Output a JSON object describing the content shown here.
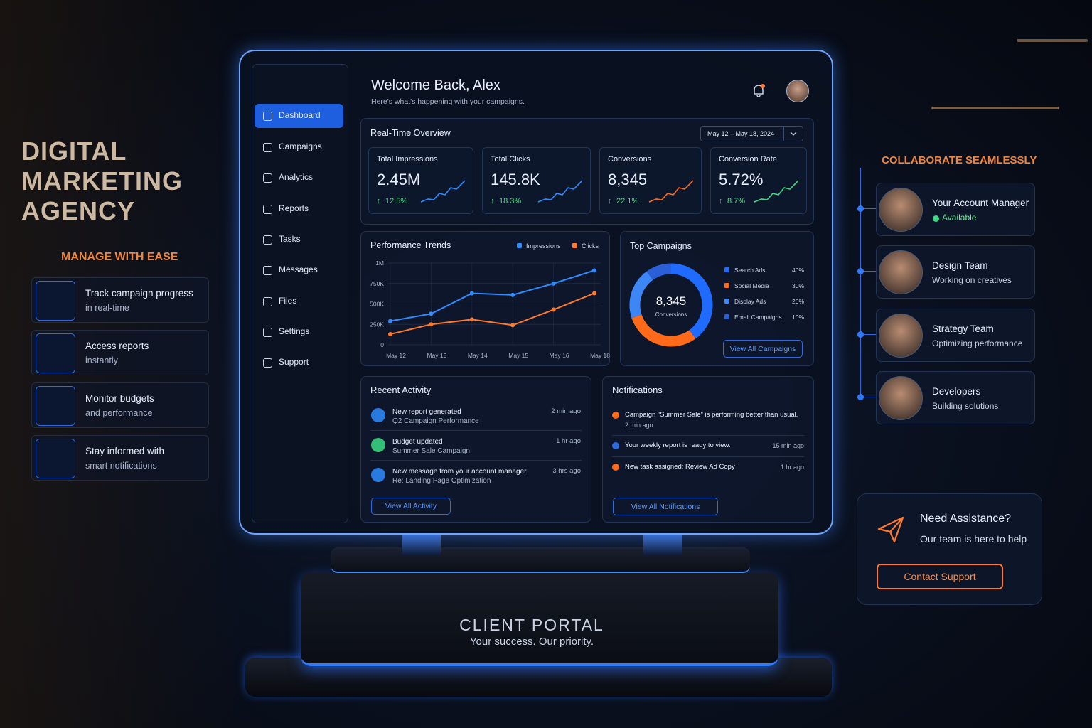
{
  "brand": {
    "lines": [
      "DIGITAL",
      "MARKETING",
      "AGENCY"
    ]
  },
  "left_panel": {
    "heading": "MANAGE WITH EASE",
    "features": [
      {
        "title": "Track campaign progress",
        "subtitle": "in real-time"
      },
      {
        "title": "Access reports",
        "subtitle": "instantly"
      },
      {
        "title": "Monitor budgets",
        "subtitle": "and performance"
      },
      {
        "title": "Stay informed with",
        "subtitle": "smart notifications"
      }
    ]
  },
  "sidebar": {
    "items": [
      "Dashboard",
      "Campaigns",
      "Analytics",
      "Reports",
      "Tasks",
      "Messages",
      "Files",
      "Settings",
      "Support"
    ]
  },
  "header": {
    "title": "Welcome Back, Alex",
    "subtitle": "Here's what's happening with your campaigns."
  },
  "overview": {
    "title": "Real-Time Overview",
    "date_range": "May 12 – May 18, 2024",
    "kpis": [
      {
        "label": "Total Impressions",
        "value": "2.45M",
        "change": "12.5%"
      },
      {
        "label": "Total Clicks",
        "value": "145.8K",
        "change": "18.3%"
      },
      {
        "label": "Conversions",
        "value": "8,345",
        "change": "22.1%"
      },
      {
        "label": "Conversion Rate",
        "value": "5.72%",
        "change": "8.7%"
      }
    ]
  },
  "chart_data": [
    {
      "type": "line",
      "title": "Performance Trends",
      "categories": [
        "May 12",
        "May 13",
        "May 14",
        "May 15",
        "May 16",
        "May 18"
      ],
      "series": [
        {
          "name": "Impressions",
          "color": "#2f8cff",
          "values": [
            290000,
            380000,
            630000,
            610000,
            750000,
            910000
          ]
        },
        {
          "name": "Clicks",
          "color": "#ff7a2a",
          "values": [
            130000,
            250000,
            310000,
            240000,
            430000,
            630000
          ]
        }
      ],
      "ylim": [
        0,
        1000000
      ],
      "yticks": [
        0,
        {
          "value": 250000,
          "label": "250K"
        },
        {
          "value": 500000,
          "label": "500K"
        },
        {
          "value": 750000,
          "label": "750K"
        },
        {
          "value": 1000000,
          "label": "1M"
        }
      ],
      "grid": true
    },
    {
      "type": "donut",
      "title": "Top Campaigns",
      "center_value": "8,345",
      "center_label": "Conversions",
      "categories": [
        "Search Ads",
        "Social Media",
        "Display Ads",
        "Email Campaigns"
      ],
      "values": [
        40,
        30,
        20,
        10
      ],
      "value_labels": [
        "40%",
        "30%",
        "20%",
        "10%"
      ],
      "colors": [
        "#1f6bff",
        "#ff6a1a",
        "#3d86f5",
        "#2a5fd8"
      ]
    }
  ],
  "top_campaigns": {
    "button": "View All Campaigns"
  },
  "recent_activity": {
    "title": "Recent Activity",
    "items": [
      {
        "title": "New report generated",
        "detail": "Q2 Campaign Performance",
        "time": "2 min ago"
      },
      {
        "title": "Budget updated",
        "detail": "Summer Sale Campaign",
        "time": "1 hr ago"
      },
      {
        "title": "New message from your account manager",
        "detail": "Re: Landing Page Optimization",
        "time": "3 hrs ago"
      }
    ],
    "button": "View All Activity"
  },
  "notifications": {
    "title": "Notifications",
    "items": [
      {
        "text": "Campaign “Summer Sale” is performing better than usual.",
        "time": "2 min ago"
      },
      {
        "text": "Your weekly report is ready to view.",
        "time": "15 min ago"
      },
      {
        "text": "New task assigned: Review Ad Copy",
        "time": "1 hr ago"
      }
    ],
    "button": "View All Notifications"
  },
  "collaborate": {
    "heading": "COLLABORATE SEAMLESSLY",
    "teams": [
      {
        "name": "Your Account Manager",
        "status": "Available"
      },
      {
        "name": "Design Team",
        "status": "Working on creatives"
      },
      {
        "name": "Strategy Team",
        "status": "Optimizing performance"
      },
      {
        "name": "Developers",
        "status": "Building solutions"
      }
    ]
  },
  "assistance": {
    "title": "Need Assistance?",
    "subtitle": "Our team is here to help",
    "button": "Contact Support"
  },
  "pedestal": {
    "title": "CLIENT PORTAL",
    "tagline": "Your success. Our priority."
  }
}
